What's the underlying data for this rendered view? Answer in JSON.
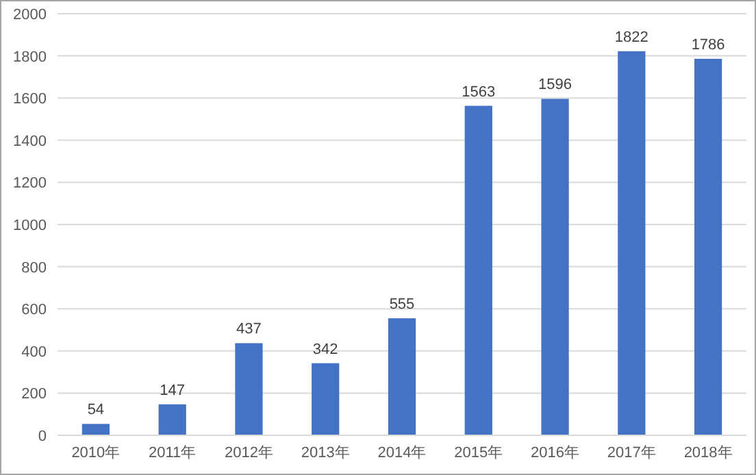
{
  "chart_data": {
    "type": "bar",
    "categories": [
      "2010年",
      "2011年",
      "2012年",
      "2013年",
      "2014年",
      "2015年",
      "2016年",
      "2017年",
      "2018年"
    ],
    "values": [
      54,
      147,
      437,
      342,
      555,
      1563,
      1596,
      1822,
      1786
    ],
    "color": "#4472c4",
    "ylim": [
      0,
      2000
    ],
    "yticks": [
      0,
      200,
      400,
      600,
      800,
      1000,
      1200,
      1400,
      1600,
      1800,
      2000
    ],
    "grid": "y",
    "data_labels": true
  }
}
